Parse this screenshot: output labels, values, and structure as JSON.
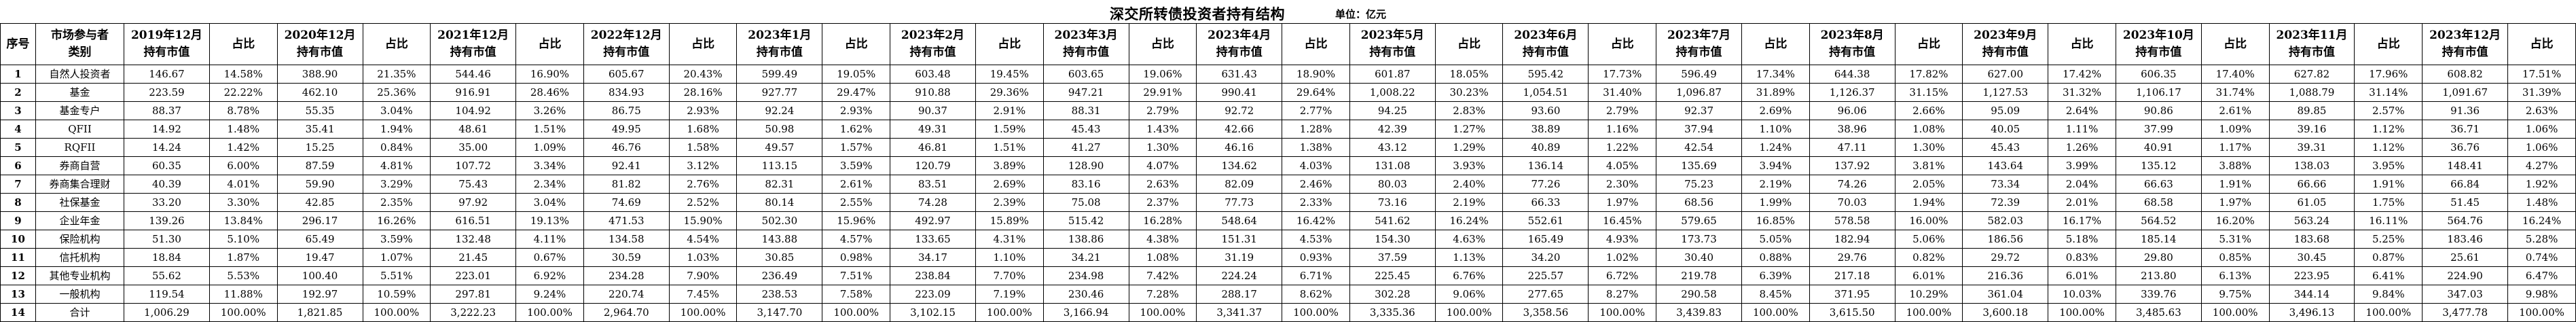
{
  "title": "深交所转债投资者持有结构",
  "unit_label": "单位：亿元",
  "table": {
    "col_seq": "序号",
    "col_category": "市场参与者类别",
    "value_suffix": "持有市值",
    "col_ratio": "占比",
    "periods": [
      "2019年12月",
      "2020年12月",
      "2021年12月",
      "2022年12月",
      "2023年1月",
      "2023年2月",
      "2023年3月",
      "2023年4月",
      "2023年5月",
      "2023年6月",
      "2023年7月",
      "2023年8月",
      "2023年9月",
      "2023年10月",
      "2023年11月",
      "2023年12月"
    ],
    "rows": [
      {
        "no": "1",
        "category": "自然人投资者",
        "cells": [
          "146.67",
          "14.58%",
          "388.90",
          "21.35%",
          "544.46",
          "16.90%",
          "605.67",
          "20.43%",
          "599.49",
          "19.05%",
          "603.48",
          "19.45%",
          "603.65",
          "19.06%",
          "631.43",
          "18.90%",
          "601.87",
          "18.05%",
          "595.42",
          "17.73%",
          "596.49",
          "17.34%",
          "644.38",
          "17.82%",
          "627.00",
          "17.42%",
          "606.35",
          "17.40%",
          "627.82",
          "17.96%",
          "608.82",
          "17.51%"
        ]
      },
      {
        "no": "2",
        "category": "基金",
        "cells": [
          "223.59",
          "22.22%",
          "462.10",
          "25.36%",
          "916.91",
          "28.46%",
          "834.93",
          "28.16%",
          "927.77",
          "29.47%",
          "910.88",
          "29.36%",
          "947.21",
          "29.91%",
          "990.41",
          "29.64%",
          "1,008.22",
          "30.23%",
          "1,054.51",
          "31.40%",
          "1,096.87",
          "31.89%",
          "1,126.37",
          "31.15%",
          "1,127.53",
          "31.32%",
          "1,106.17",
          "31.74%",
          "1,088.79",
          "31.14%",
          "1,091.67",
          "31.39%"
        ]
      },
      {
        "no": "3",
        "category": "基金专户",
        "cells": [
          "88.37",
          "8.78%",
          "55.35",
          "3.04%",
          "104.92",
          "3.26%",
          "86.75",
          "2.93%",
          "92.24",
          "2.93%",
          "90.37",
          "2.91%",
          "88.31",
          "2.79%",
          "92.72",
          "2.77%",
          "94.25",
          "2.83%",
          "93.60",
          "2.79%",
          "92.37",
          "2.69%",
          "96.06",
          "2.66%",
          "95.09",
          "2.64%",
          "90.86",
          "2.61%",
          "89.85",
          "2.57%",
          "91.36",
          "2.63%"
        ]
      },
      {
        "no": "4",
        "category": "QFII",
        "cells": [
          "14.92",
          "1.48%",
          "35.41",
          "1.94%",
          "48.61",
          "1.51%",
          "49.95",
          "1.68%",
          "50.98",
          "1.62%",
          "49.31",
          "1.59%",
          "45.43",
          "1.43%",
          "42.66",
          "1.28%",
          "42.39",
          "1.27%",
          "38.89",
          "1.16%",
          "37.94",
          "1.10%",
          "38.96",
          "1.08%",
          "40.05",
          "1.11%",
          "37.99",
          "1.09%",
          "39.16",
          "1.12%",
          "36.71",
          "1.06%"
        ]
      },
      {
        "no": "5",
        "category": "RQFII",
        "cells": [
          "14.24",
          "1.42%",
          "15.25",
          "0.84%",
          "35.00",
          "1.09%",
          "46.76",
          "1.58%",
          "49.57",
          "1.57%",
          "46.81",
          "1.51%",
          "41.27",
          "1.30%",
          "46.16",
          "1.38%",
          "43.12",
          "1.29%",
          "40.89",
          "1.22%",
          "42.54",
          "1.24%",
          "47.11",
          "1.30%",
          "45.43",
          "1.26%",
          "40.91",
          "1.17%",
          "39.31",
          "1.12%",
          "36.76",
          "1.06%"
        ]
      },
      {
        "no": "6",
        "category": "券商自营",
        "cells": [
          "60.35",
          "6.00%",
          "87.59",
          "4.81%",
          "107.72",
          "3.34%",
          "92.41",
          "3.12%",
          "113.15",
          "3.59%",
          "120.79",
          "3.89%",
          "128.90",
          "4.07%",
          "134.62",
          "4.03%",
          "131.08",
          "3.93%",
          "136.14",
          "4.05%",
          "135.69",
          "3.94%",
          "137.92",
          "3.81%",
          "143.64",
          "3.99%",
          "135.12",
          "3.88%",
          "138.03",
          "3.95%",
          "148.41",
          "4.27%"
        ]
      },
      {
        "no": "7",
        "category": "券商集合理财",
        "cells": [
          "40.39",
          "4.01%",
          "59.90",
          "3.29%",
          "75.43",
          "2.34%",
          "81.82",
          "2.76%",
          "82.31",
          "2.61%",
          "83.51",
          "2.69%",
          "83.16",
          "2.63%",
          "82.09",
          "2.46%",
          "80.03",
          "2.40%",
          "77.26",
          "2.30%",
          "75.23",
          "2.19%",
          "74.26",
          "2.05%",
          "73.34",
          "2.04%",
          "66.63",
          "1.91%",
          "66.66",
          "1.91%",
          "66.84",
          "1.92%"
        ]
      },
      {
        "no": "8",
        "category": "社保基金",
        "cells": [
          "33.20",
          "3.30%",
          "42.85",
          "2.35%",
          "97.92",
          "3.04%",
          "74.69",
          "2.52%",
          "80.14",
          "2.55%",
          "74.28",
          "2.39%",
          "75.08",
          "2.37%",
          "77.73",
          "2.33%",
          "73.16",
          "2.19%",
          "66.33",
          "1.97%",
          "68.56",
          "1.99%",
          "70.03",
          "1.94%",
          "72.39",
          "2.01%",
          "68.58",
          "1.97%",
          "61.05",
          "1.75%",
          "51.45",
          "1.48%"
        ]
      },
      {
        "no": "9",
        "category": "企业年金",
        "cells": [
          "139.26",
          "13.84%",
          "296.17",
          "16.26%",
          "616.51",
          "19.13%",
          "471.53",
          "15.90%",
          "502.30",
          "15.96%",
          "492.97",
          "15.89%",
          "515.42",
          "16.28%",
          "548.64",
          "16.42%",
          "541.62",
          "16.24%",
          "552.61",
          "16.45%",
          "579.65",
          "16.85%",
          "578.58",
          "16.00%",
          "582.03",
          "16.17%",
          "564.52",
          "16.20%",
          "563.24",
          "16.11%",
          "564.76",
          "16.24%"
        ]
      },
      {
        "no": "10",
        "category": "保险机构",
        "cells": [
          "51.30",
          "5.10%",
          "65.49",
          "3.59%",
          "132.48",
          "4.11%",
          "134.58",
          "4.54%",
          "143.88",
          "4.57%",
          "133.65",
          "4.31%",
          "138.86",
          "4.38%",
          "151.31",
          "4.53%",
          "154.30",
          "4.63%",
          "165.49",
          "4.93%",
          "173.73",
          "5.05%",
          "182.94",
          "5.06%",
          "186.56",
          "5.18%",
          "185.14",
          "5.31%",
          "183.68",
          "5.25%",
          "183.46",
          "5.28%"
        ]
      },
      {
        "no": "11",
        "category": "信托机构",
        "cells": [
          "18.84",
          "1.87%",
          "19.47",
          "1.07%",
          "21.45",
          "0.67%",
          "30.59",
          "1.03%",
          "30.85",
          "0.98%",
          "34.17",
          "1.10%",
          "34.21",
          "1.08%",
          "31.19",
          "0.93%",
          "37.59",
          "1.13%",
          "34.20",
          "1.02%",
          "30.40",
          "0.88%",
          "29.76",
          "0.82%",
          "29.72",
          "0.83%",
          "29.80",
          "0.85%",
          "30.45",
          "0.87%",
          "25.61",
          "0.74%"
        ]
      },
      {
        "no": "12",
        "category": "其他专业机构",
        "cells": [
          "55.62",
          "5.53%",
          "100.40",
          "5.51%",
          "223.01",
          "6.92%",
          "234.28",
          "7.90%",
          "236.49",
          "7.51%",
          "238.84",
          "7.70%",
          "234.98",
          "7.42%",
          "224.24",
          "6.71%",
          "225.45",
          "6.76%",
          "225.57",
          "6.72%",
          "219.78",
          "6.39%",
          "217.18",
          "6.01%",
          "216.36",
          "6.01%",
          "213.80",
          "6.13%",
          "223.95",
          "6.41%",
          "224.90",
          "6.47%"
        ]
      },
      {
        "no": "13",
        "category": "一般机构",
        "cells": [
          "119.54",
          "11.88%",
          "192.97",
          "10.59%",
          "297.81",
          "9.24%",
          "220.74",
          "7.45%",
          "238.53",
          "7.58%",
          "223.09",
          "7.19%",
          "230.46",
          "7.28%",
          "288.17",
          "8.62%",
          "302.28",
          "9.06%",
          "277.65",
          "8.27%",
          "290.58",
          "8.45%",
          "371.95",
          "10.29%",
          "361.04",
          "10.03%",
          "339.76",
          "9.75%",
          "344.14",
          "9.84%",
          "347.03",
          "9.98%"
        ]
      },
      {
        "no": "14",
        "category": "合计",
        "cells": [
          "1,006.29",
          "100.00%",
          "1,821.85",
          "100.00%",
          "3,222.23",
          "100.00%",
          "2,964.70",
          "100.00%",
          "3,147.70",
          "100.00%",
          "3,102.15",
          "100.00%",
          "3,166.94",
          "100.00%",
          "3,341.37",
          "100.00%",
          "3,335.36",
          "100.00%",
          "3,358.56",
          "100.00%",
          "3,439.83",
          "100.00%",
          "3,615.50",
          "100.00%",
          "3,600.18",
          "100.00%",
          "3,485.63",
          "100.00%",
          "3,496.13",
          "100.00%",
          "3,477.78",
          "100.00%"
        ]
      }
    ]
  }
}
